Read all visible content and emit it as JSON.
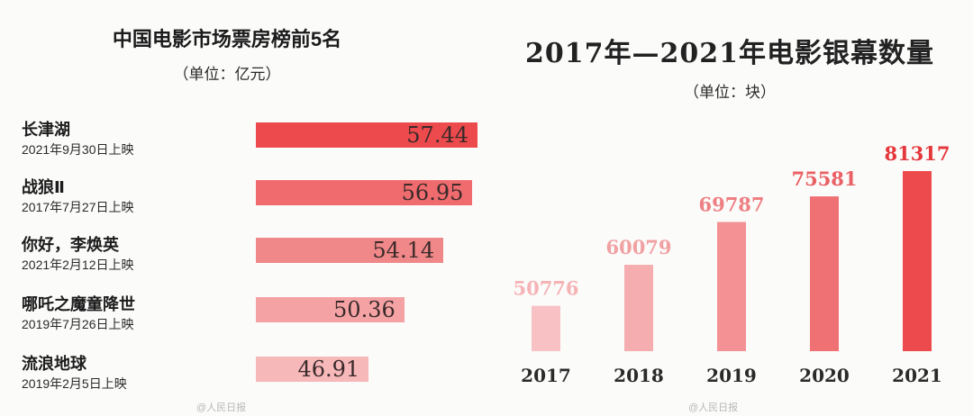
{
  "left_chart": {
    "title": "中国电影市场票房榜前5名",
    "unit": "（单位：亿元）"
  },
  "right_chart": {
    "title": "2017年—2021年电影银幕数量",
    "unit": "（单位：块）"
  },
  "watermarks": [
    "@人民日报",
    "@人民日报"
  ],
  "chart_data": [
    {
      "type": "bar",
      "orientation": "horizontal",
      "title": "中国电影市场票房榜前5名",
      "subtitle": "（单位：亿元）",
      "categories": [
        "长津湖",
        "战狼Ⅱ",
        "你好，李焕英",
        "哪吒之魔童降世",
        "流浪地球"
      ],
      "release_dates": [
        "2021年9月30日上映",
        "2017年7月27日上映",
        "2021年2月12日上映",
        "2019年7月26日上映",
        "2019年2月5日上映"
      ],
      "values": [
        57.44,
        56.95,
        54.14,
        50.36,
        46.91
      ],
      "value_labels": [
        "57.44",
        "56.95",
        "54.14",
        "50.36",
        "46.91"
      ],
      "colors": [
        "#ec4a4c",
        "#ef6b6e",
        "#f08789",
        "#f4a2a4",
        "#f7b8ba"
      ],
      "xlim": [
        0,
        57.44
      ],
      "grid": false
    },
    {
      "type": "bar",
      "orientation": "vertical",
      "title": "2017年—2021年电影银幕数量",
      "subtitle": "（单位：块）",
      "categories": [
        "2017",
        "2018",
        "2019",
        "2020",
        "2021"
      ],
      "values": [
        50776,
        60079,
        69787,
        75581,
        81317
      ],
      "value_labels": [
        "50776",
        "60079",
        "69787",
        "75581",
        "81317"
      ],
      "colors": [
        "#f8c2c4",
        "#f6adaf",
        "#f39194",
        "#f07174",
        "#ec4a4c"
      ],
      "label_colors": [
        "#f6b3b5",
        "#f2a1a3",
        "#ee7f82",
        "#ea6064",
        "#e5383c"
      ],
      "ylim": [
        0,
        81317
      ],
      "grid": false
    }
  ]
}
